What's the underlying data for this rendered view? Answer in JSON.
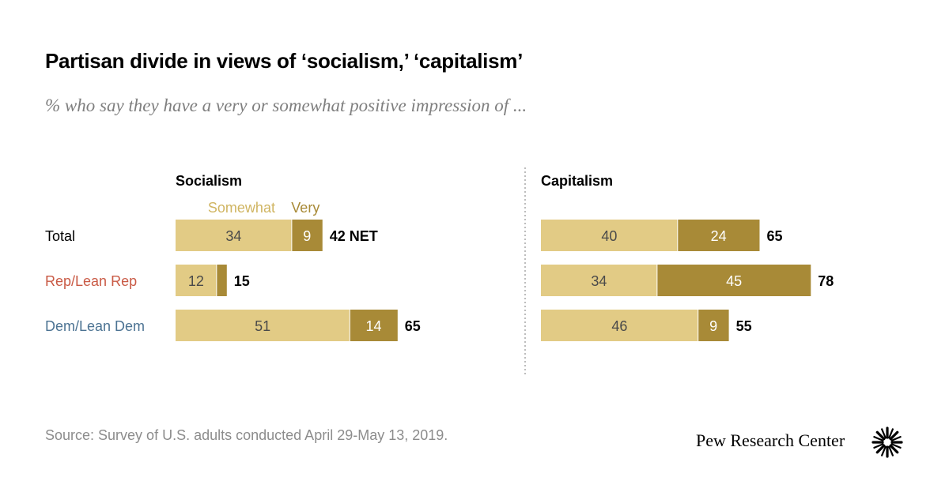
{
  "header": {
    "title": "Partisan divide in views of ‘socialism,’ ‘capitalism’",
    "subtitle": "% who say they have a very or somewhat positive impression of ..."
  },
  "footer": {
    "source": "Source: Survey of U.S. adults conducted April 29-May 13, 2019.",
    "brand": "Pew Research Center"
  },
  "colors": {
    "somewhat": "#e2cb85",
    "very": "#a88a37",
    "somewhat_label": "#d0b562",
    "very_label": "#a88a37",
    "rep": "#c95a45",
    "dem": "#4c7393",
    "bar_text": "#4a4a4a",
    "divider": "#999999"
  },
  "chart_data": {
    "type": "bar",
    "orientation": "horizontal",
    "stacked": true,
    "categories": [
      "Total",
      "Rep/Lean Rep",
      "Dem/Lean Dem"
    ],
    "panels": [
      {
        "title": "Socialism",
        "legend": [
          "Somewhat",
          "Very"
        ],
        "series": [
          {
            "name": "Somewhat",
            "values": [
              34,
              12,
              51
            ]
          },
          {
            "name": "Very",
            "values": [
              9,
              3,
              14
            ]
          }
        ],
        "net_labels": [
          "42 NET",
          "15",
          "65"
        ]
      },
      {
        "title": "Capitalism",
        "series": [
          {
            "name": "Somewhat",
            "values": [
              40,
              34,
              46
            ]
          },
          {
            "name": "Very",
            "values": [
              24,
              45,
              9
            ]
          }
        ],
        "net_labels": [
          "65",
          "78",
          "55"
        ]
      }
    ]
  }
}
